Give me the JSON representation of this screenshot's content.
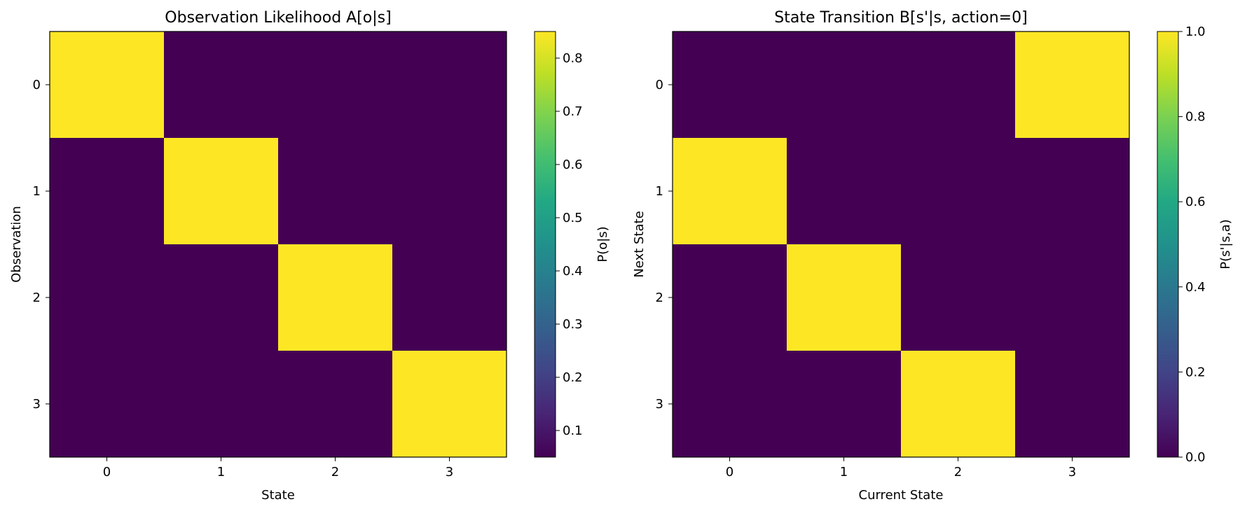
{
  "chart_data": [
    {
      "type": "heatmap",
      "title": "Observation Likelihood A[o|s]",
      "xlabel": "State",
      "ylabel": "Observation",
      "x_categories": [
        "0",
        "1",
        "2",
        "3"
      ],
      "y_categories": [
        "0",
        "1",
        "2",
        "3"
      ],
      "values": [
        [
          0.85,
          0.05,
          0.05,
          0.05
        ],
        [
          0.05,
          0.85,
          0.05,
          0.05
        ],
        [
          0.05,
          0.05,
          0.85,
          0.05
        ],
        [
          0.05,
          0.05,
          0.05,
          0.85
        ]
      ],
      "colorbar": {
        "label": "P(o|s)",
        "vmin": 0.05,
        "vmax": 0.85,
        "ticks": [
          "0.1",
          "0.2",
          "0.3",
          "0.4",
          "0.5",
          "0.6",
          "0.7",
          "0.8"
        ]
      },
      "colormap": "viridis"
    },
    {
      "type": "heatmap",
      "title": "State Transition B[s'|s, action=0]",
      "xlabel": "Current State",
      "ylabel": "Next State",
      "x_categories": [
        "0",
        "1",
        "2",
        "3"
      ],
      "y_categories": [
        "0",
        "1",
        "2",
        "3"
      ],
      "values": [
        [
          0,
          0,
          0,
          1
        ],
        [
          1,
          0,
          0,
          0
        ],
        [
          0,
          1,
          0,
          0
        ],
        [
          0,
          0,
          1,
          0
        ]
      ],
      "colorbar": {
        "label": "P(s'|s,a)",
        "vmin": 0,
        "vmax": 1,
        "ticks": [
          "0.0",
          "0.2",
          "0.4",
          "0.6",
          "0.8",
          "1.0"
        ]
      },
      "colormap": "viridis"
    }
  ]
}
